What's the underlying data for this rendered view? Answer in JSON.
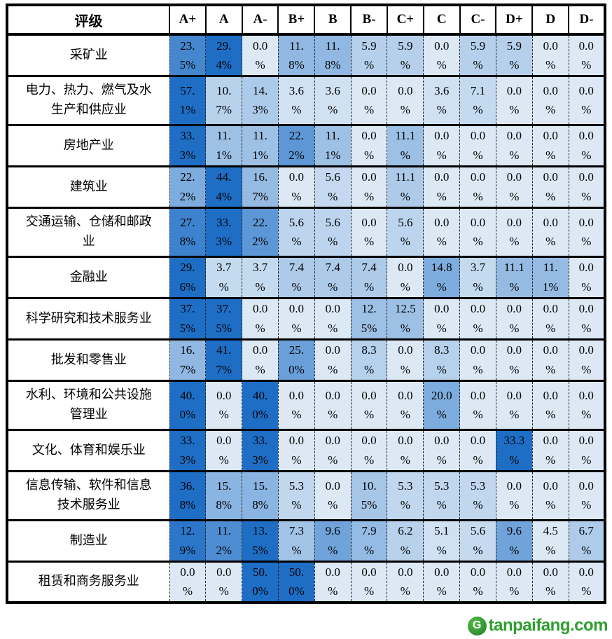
{
  "table": {
    "corner_label": "评级",
    "columns": [
      "A+",
      "A",
      "A-",
      "B+",
      "B",
      "B-",
      "C+",
      "C",
      "C-",
      "D+",
      "D",
      "D-"
    ],
    "rows": [
      {
        "label": "采矿业",
        "cells": [
          "23.\n5%",
          "29.\n4%",
          "0.0\n%",
          "11.\n8%",
          "11.\n8%",
          "5.9\n%",
          "5.9\n%",
          "0.0\n%",
          "5.9\n%",
          "5.9\n%",
          "0.0\n%",
          "0.0\n%"
        ]
      },
      {
        "label": "电力、热力、燃气及水\n生产和供应业",
        "cells": [
          "57.\n1%",
          "10.\n7%",
          "14.\n3%",
          "3.6\n%",
          "3.6\n%",
          "0.0\n%",
          "0.0\n%",
          "3.6\n%",
          "7.1\n%",
          "0.0\n%",
          "0.0\n%",
          "0.0\n%"
        ]
      },
      {
        "label": "房地产业",
        "cells": [
          "33.\n3%",
          "11.\n1%",
          "11.\n1%",
          "22.\n2%",
          "11.\n1%",
          "0.0\n%",
          "11.1\n%",
          "0.0\n%",
          "0.0\n%",
          "0.0\n%",
          "0.0\n%",
          "0.0\n%"
        ]
      },
      {
        "label": "建筑业",
        "cells": [
          "22.\n2%",
          "44.\n4%",
          "16.\n7%",
          "0.0\n%",
          "5.6\n%",
          "0.0\n%",
          "11.1\n%",
          "0.0\n%",
          "0.0\n%",
          "0.0\n%",
          "0.0\n%",
          "0.0\n%"
        ]
      },
      {
        "label": "交通运输、仓储和邮政\n业",
        "cells": [
          "27.\n8%",
          "33.\n3%",
          "22.\n2%",
          "5.6\n%",
          "5.6\n%",
          "0.0\n%",
          "5.6\n%",
          "0.0\n%",
          "0.0\n%",
          "0.0\n%",
          "0.0\n%",
          "0.0\n%"
        ]
      },
      {
        "label": "金融业",
        "cells": [
          "29.\n6%",
          "3.7\n%",
          "3.7\n%",
          "7.4\n%",
          "7.4\n%",
          "7.4\n%",
          "0.0\n%",
          "14.8\n%",
          "3.7\n%",
          "11.1\n%",
          "11.\n1%",
          "0.0\n%"
        ]
      },
      {
        "label": "科学研究和技术服务业",
        "cells": [
          "37.\n5%",
          "37.\n5%",
          "0.0\n%",
          "0.0\n%",
          "0.0\n%",
          "12.\n5%",
          "12.5\n%",
          "0.0\n%",
          "0.0\n%",
          "0.0\n%",
          "0.0\n%",
          "0.0\n%"
        ]
      },
      {
        "label": "批发和零售业",
        "cells": [
          "16.\n7%",
          "41.\n7%",
          "0.0\n%",
          "25.\n0%",
          "0.0\n%",
          "8.3\n%",
          "0.0\n%",
          "8.3\n%",
          "0.0\n%",
          "0.0\n%",
          "0.0\n%",
          "0.0\n%"
        ]
      },
      {
        "label": "水利、环境和公共设施\n管理业",
        "cells": [
          "40.\n0%",
          "0.0\n%",
          "40.\n0%",
          "0.0\n%",
          "0.0\n%",
          "0.0\n%",
          "0.0\n%",
          "20.0\n%",
          "0.0\n%",
          "0.0\n%",
          "0.0\n%",
          "0.0\n%"
        ]
      },
      {
        "label": "文化、体育和娱乐业",
        "cells": [
          "33.\n3%",
          "0.0\n%",
          "33.\n3%",
          "0.0\n%",
          "0.0\n%",
          "0.0\n%",
          "0.0\n%",
          "0.0\n%",
          "0.0\n%",
          "33.3\n%",
          "0.0\n%",
          "0.0\n%"
        ]
      },
      {
        "label": "信息传输、软件和信息\n技术服务业",
        "cells": [
          "36.\n8%",
          "15.\n8%",
          "15.\n8%",
          "5.3\n%",
          "0.0\n%",
          "10.\n5%",
          "5.3\n%",
          "5.3\n%",
          "5.3\n%",
          "0.0\n%",
          "0.0\n%",
          "0.0\n%"
        ]
      },
      {
        "label": "制造业",
        "cells": [
          "12.\n9%",
          "11.\n2%",
          "13.\n5%",
          "7.3\n%",
          "9.6\n%",
          "7.9\n%",
          "6.2\n%",
          "5.1\n%",
          "5.6\n%",
          "9.6\n%",
          "4.5\n%",
          "6.7\n%"
        ]
      },
      {
        "label": "租赁和商务服务业",
        "cells": [
          "0.0\n%",
          "0.0\n%",
          "50.\n0%",
          "50.\n0%",
          "0.0\n%",
          "0.0\n%",
          "0.0\n%",
          "0.0\n%",
          "0.0\n%",
          "0.0\n%",
          "0.0\n%",
          "0.0\n%"
        ]
      }
    ]
  },
  "chart_data": {
    "type": "heatmap",
    "unit": "%",
    "columns": [
      "A+",
      "A",
      "A-",
      "B+",
      "B",
      "B-",
      "C+",
      "C",
      "C-",
      "D+",
      "D",
      "D-"
    ],
    "rows": [
      "采矿业",
      "电力、热力、燃气及水生产和供应业",
      "房地产业",
      "建筑业",
      "交通运输、仓储和邮政业",
      "金融业",
      "科学研究和技术服务业",
      "批发和零售业",
      "水利、环境和公共设施管理业",
      "文化、体育和娱乐业",
      "信息传输、软件和信息技术服务业",
      "制造业",
      "租赁和商务服务业"
    ],
    "matrix": [
      [
        23.5,
        29.4,
        0.0,
        11.8,
        11.8,
        5.9,
        5.9,
        0.0,
        5.9,
        5.9,
        0.0,
        0.0
      ],
      [
        57.1,
        10.7,
        14.3,
        3.6,
        3.6,
        0.0,
        0.0,
        3.6,
        7.1,
        0.0,
        0.0,
        0.0
      ],
      [
        33.3,
        11.1,
        11.1,
        22.2,
        11.1,
        0.0,
        11.1,
        0.0,
        0.0,
        0.0,
        0.0,
        0.0
      ],
      [
        22.2,
        44.4,
        16.7,
        0.0,
        5.6,
        0.0,
        11.1,
        0.0,
        0.0,
        0.0,
        0.0,
        0.0
      ],
      [
        27.8,
        33.3,
        22.2,
        5.6,
        5.6,
        0.0,
        5.6,
        0.0,
        0.0,
        0.0,
        0.0,
        0.0
      ],
      [
        29.6,
        3.7,
        3.7,
        7.4,
        7.4,
        7.4,
        0.0,
        14.8,
        3.7,
        11.1,
        11.1,
        0.0
      ],
      [
        37.5,
        37.5,
        0.0,
        0.0,
        0.0,
        12.5,
        12.5,
        0.0,
        0.0,
        0.0,
        0.0,
        0.0
      ],
      [
        16.7,
        41.7,
        0.0,
        25.0,
        0.0,
        8.3,
        0.0,
        8.3,
        0.0,
        0.0,
        0.0,
        0.0
      ],
      [
        40.0,
        0.0,
        40.0,
        0.0,
        0.0,
        0.0,
        0.0,
        20.0,
        0.0,
        0.0,
        0.0,
        0.0
      ],
      [
        33.3,
        0.0,
        33.3,
        0.0,
        0.0,
        0.0,
        0.0,
        0.0,
        0.0,
        33.3,
        0.0,
        0.0
      ],
      [
        36.8,
        15.8,
        15.8,
        5.3,
        0.0,
        10.5,
        5.3,
        5.3,
        5.3,
        0.0,
        0.0,
        0.0
      ],
      [
        12.9,
        11.2,
        13.5,
        7.3,
        9.6,
        7.9,
        6.2,
        5.1,
        5.6,
        9.6,
        4.5,
        6.7
      ],
      [
        0.0,
        0.0,
        50.0,
        50.0,
        0.0,
        0.0,
        0.0,
        0.0,
        0.0,
        0.0,
        0.0,
        0.0
      ]
    ],
    "color_scale": {
      "min_color": "#dce9f5",
      "max_color": "#1e6ec6",
      "normalization": "per-row",
      "legend_position": "none",
      "grid": "dashed-vertical-solid-horizontal"
    }
  },
  "watermark": {
    "text": "tanpaifang.com",
    "text_color": "#2e9e2e",
    "logo_glyph": "G"
  }
}
